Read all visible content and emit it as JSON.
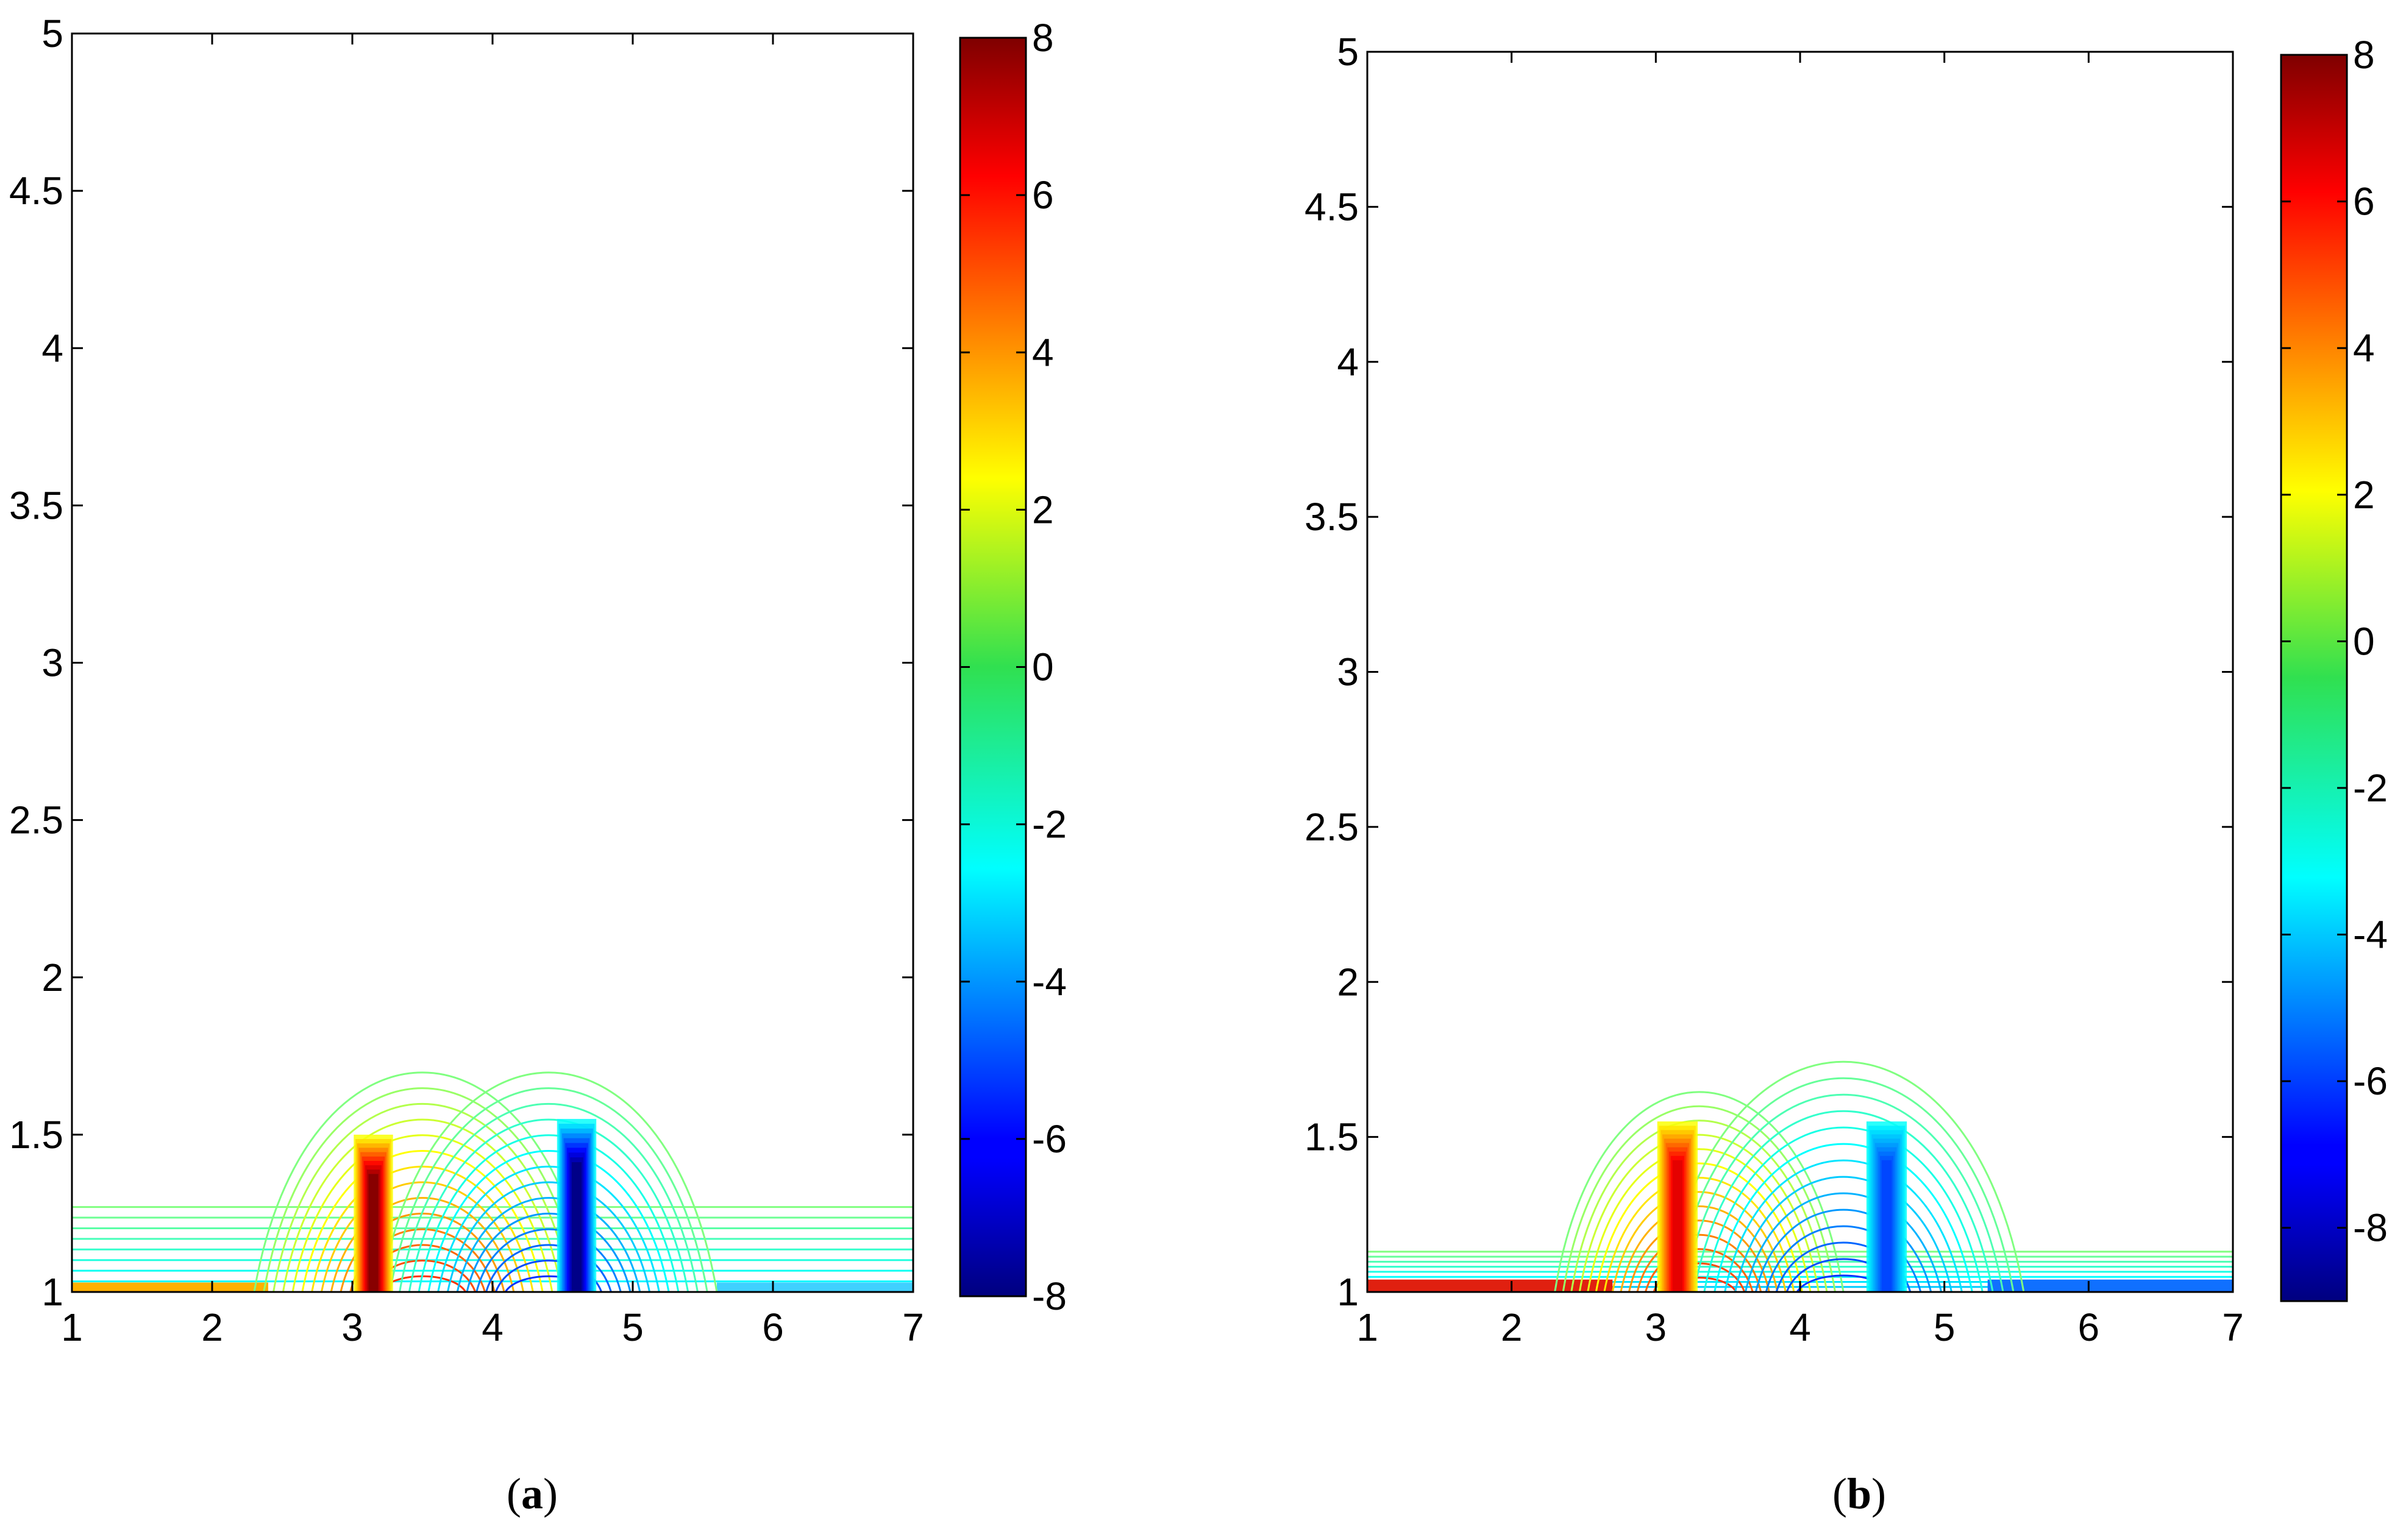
{
  "chart_data": [
    {
      "type": "heatmap",
      "panel": "a",
      "caption": {
        "open": "(",
        "letter": "a",
        "close": ")"
      },
      "plot_style": "filled contour lines (color-coded)",
      "xlim": [
        1,
        7
      ],
      "ylim": [
        1,
        5
      ],
      "xticks": [
        "1",
        "2",
        "3",
        "4",
        "5",
        "6",
        "7"
      ],
      "yticks": [
        "1",
        "1.5",
        "2",
        "2.5",
        "3",
        "3.5",
        "4",
        "4.5",
        "5"
      ],
      "colorbar": {
        "range": [
          -8,
          8
        ],
        "ticks": [
          "8",
          "6",
          "4",
          "2",
          "0",
          "-2",
          "-4",
          "-6",
          "-8"
        ],
        "colormap": "jet"
      },
      "features": {
        "dome_left": {
          "center_x": 3.5,
          "top_y": 1.93,
          "half_width": 1.2
        },
        "dome_right": {
          "center_x": 4.4,
          "top_y": 1.93,
          "half_width": 1.2
        },
        "positive_core": {
          "x": 3.15,
          "y_range": [
            1.0,
            1.5
          ],
          "peak_value": 8
        },
        "negative_core": {
          "x": 4.6,
          "y_range": [
            1.0,
            1.55
          ],
          "peak_value": -8
        },
        "baseline_band_top_y": 1.27
      }
    },
    {
      "type": "heatmap",
      "panel": "b",
      "caption": {
        "open": "(",
        "letter": "b",
        "close": ")"
      },
      "plot_style": "filled contour lines (color-coded)",
      "xlim": [
        1,
        7
      ],
      "ylim": [
        1,
        5
      ],
      "xticks": [
        "1",
        "2",
        "3",
        "4",
        "5",
        "6",
        "7"
      ],
      "yticks": [
        "1",
        "1.5",
        "2",
        "2.5",
        "3",
        "3.5",
        "4",
        "4.5",
        "5"
      ],
      "colorbar": {
        "range": [
          -9,
          8
        ],
        "ticks": [
          "8",
          "6",
          "4",
          "2",
          "0",
          "-2",
          "-4",
          "-6",
          "-8"
        ],
        "colormap": "jet"
      },
      "features": {
        "dome_left": {
          "center_x": 3.3,
          "top_y": 1.86,
          "half_width": 1.0
        },
        "dome_right": {
          "center_x": 4.3,
          "top_y": 1.99,
          "half_width": 1.25
        },
        "positive_core": {
          "x": 3.15,
          "y_range": [
            1.05,
            1.55
          ],
          "peak_value": 6
        },
        "negative_core": {
          "x": 4.6,
          "y_range": [
            1.05,
            1.55
          ],
          "peak_value": -4
        },
        "baseline_band_top_y": 1.13
      }
    }
  ]
}
